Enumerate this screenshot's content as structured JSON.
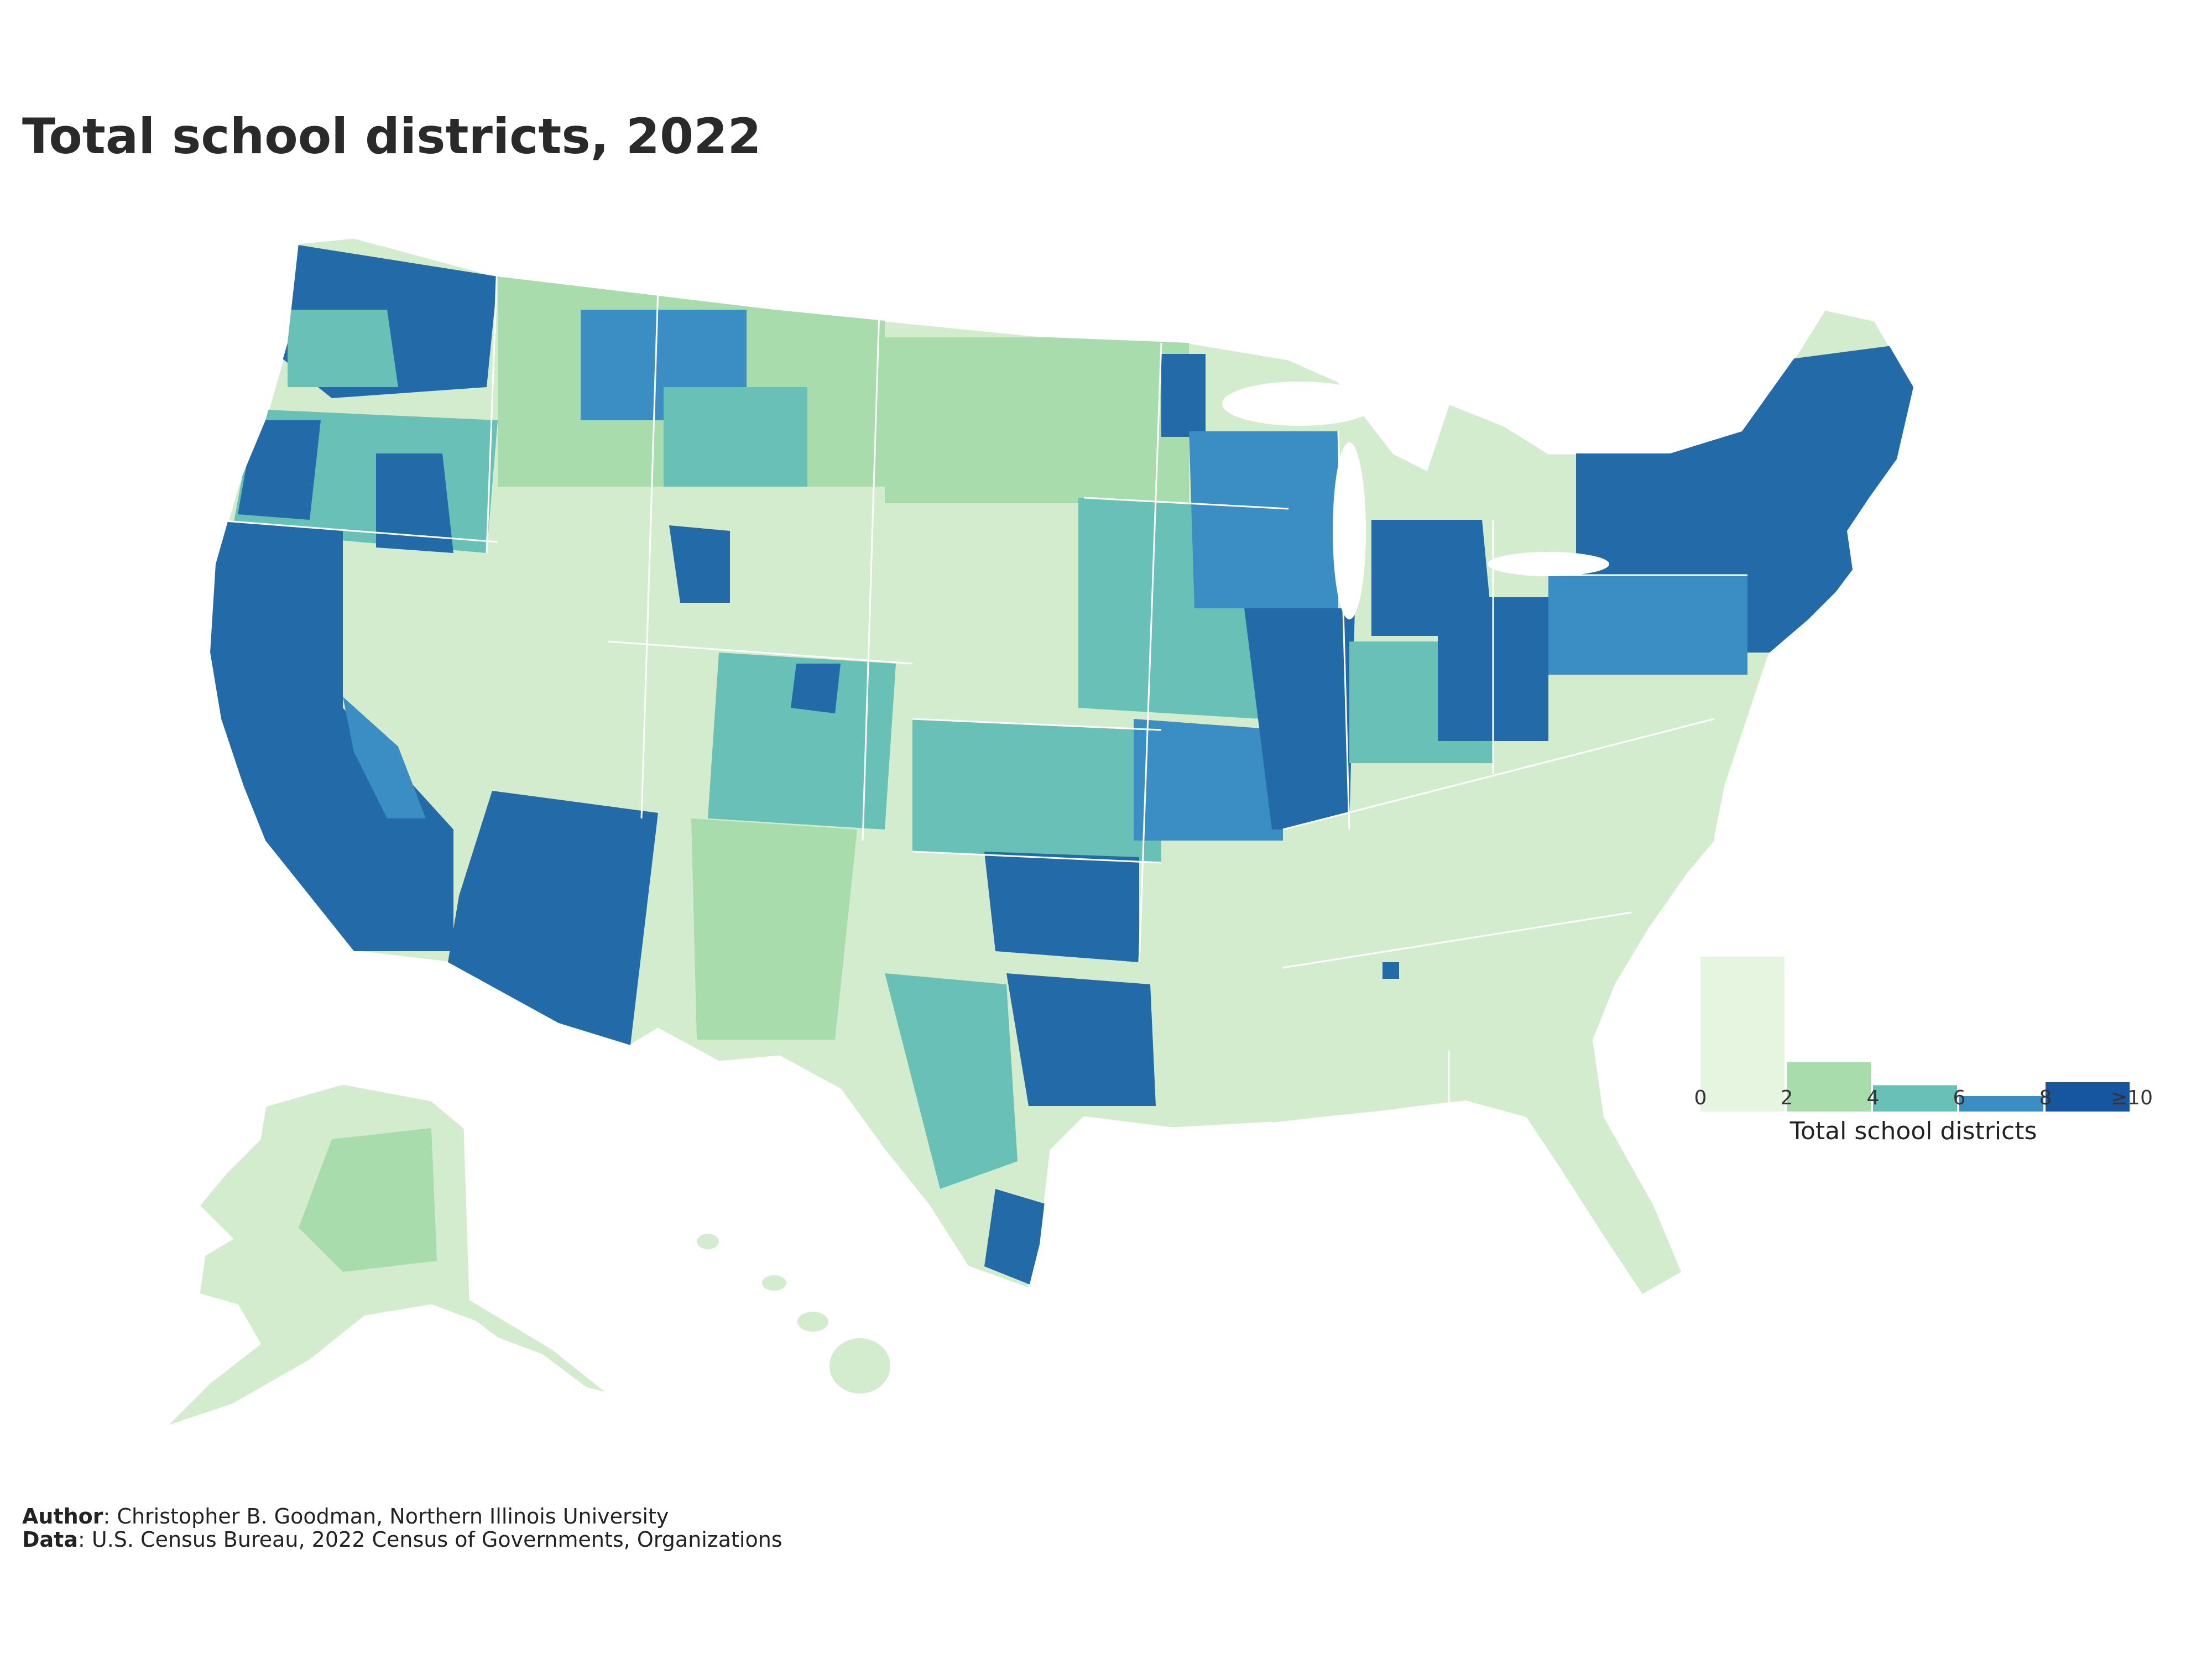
{
  "title": "Total school districts, 2022",
  "legend": {
    "label": "Total school districts",
    "ticks": [
      "0",
      "2",
      "4",
      "6",
      "8",
      "≥10"
    ],
    "bins": [
      {
        "range": "0–2",
        "color": "#e6f5df",
        "share": 1.0
      },
      {
        "range": "2–4",
        "color": "#a8dcac",
        "share": 0.32
      },
      {
        "range": "4–6",
        "color": "#68c0b6",
        "share": 0.17
      },
      {
        "range": "6–8",
        "color": "#3a8ec3",
        "share": 0.1
      },
      {
        "range": "≥10",
        "color": "#1655a0",
        "share": 0.19
      }
    ]
  },
  "colors": {
    "c0": "#d3ecce",
    "c1": "#a8dcac",
    "c2": "#68c0b6",
    "c3": "#3a8ec3",
    "c4": "#236aa9"
  },
  "credits": {
    "author_label": "Author",
    "author_text": ": Christopher B. Goodman, Northern Illinois University",
    "data_label": "Data",
    "data_text": ": U.S. Census Bureau, 2022 Census of Governments, Organizations"
  }
}
